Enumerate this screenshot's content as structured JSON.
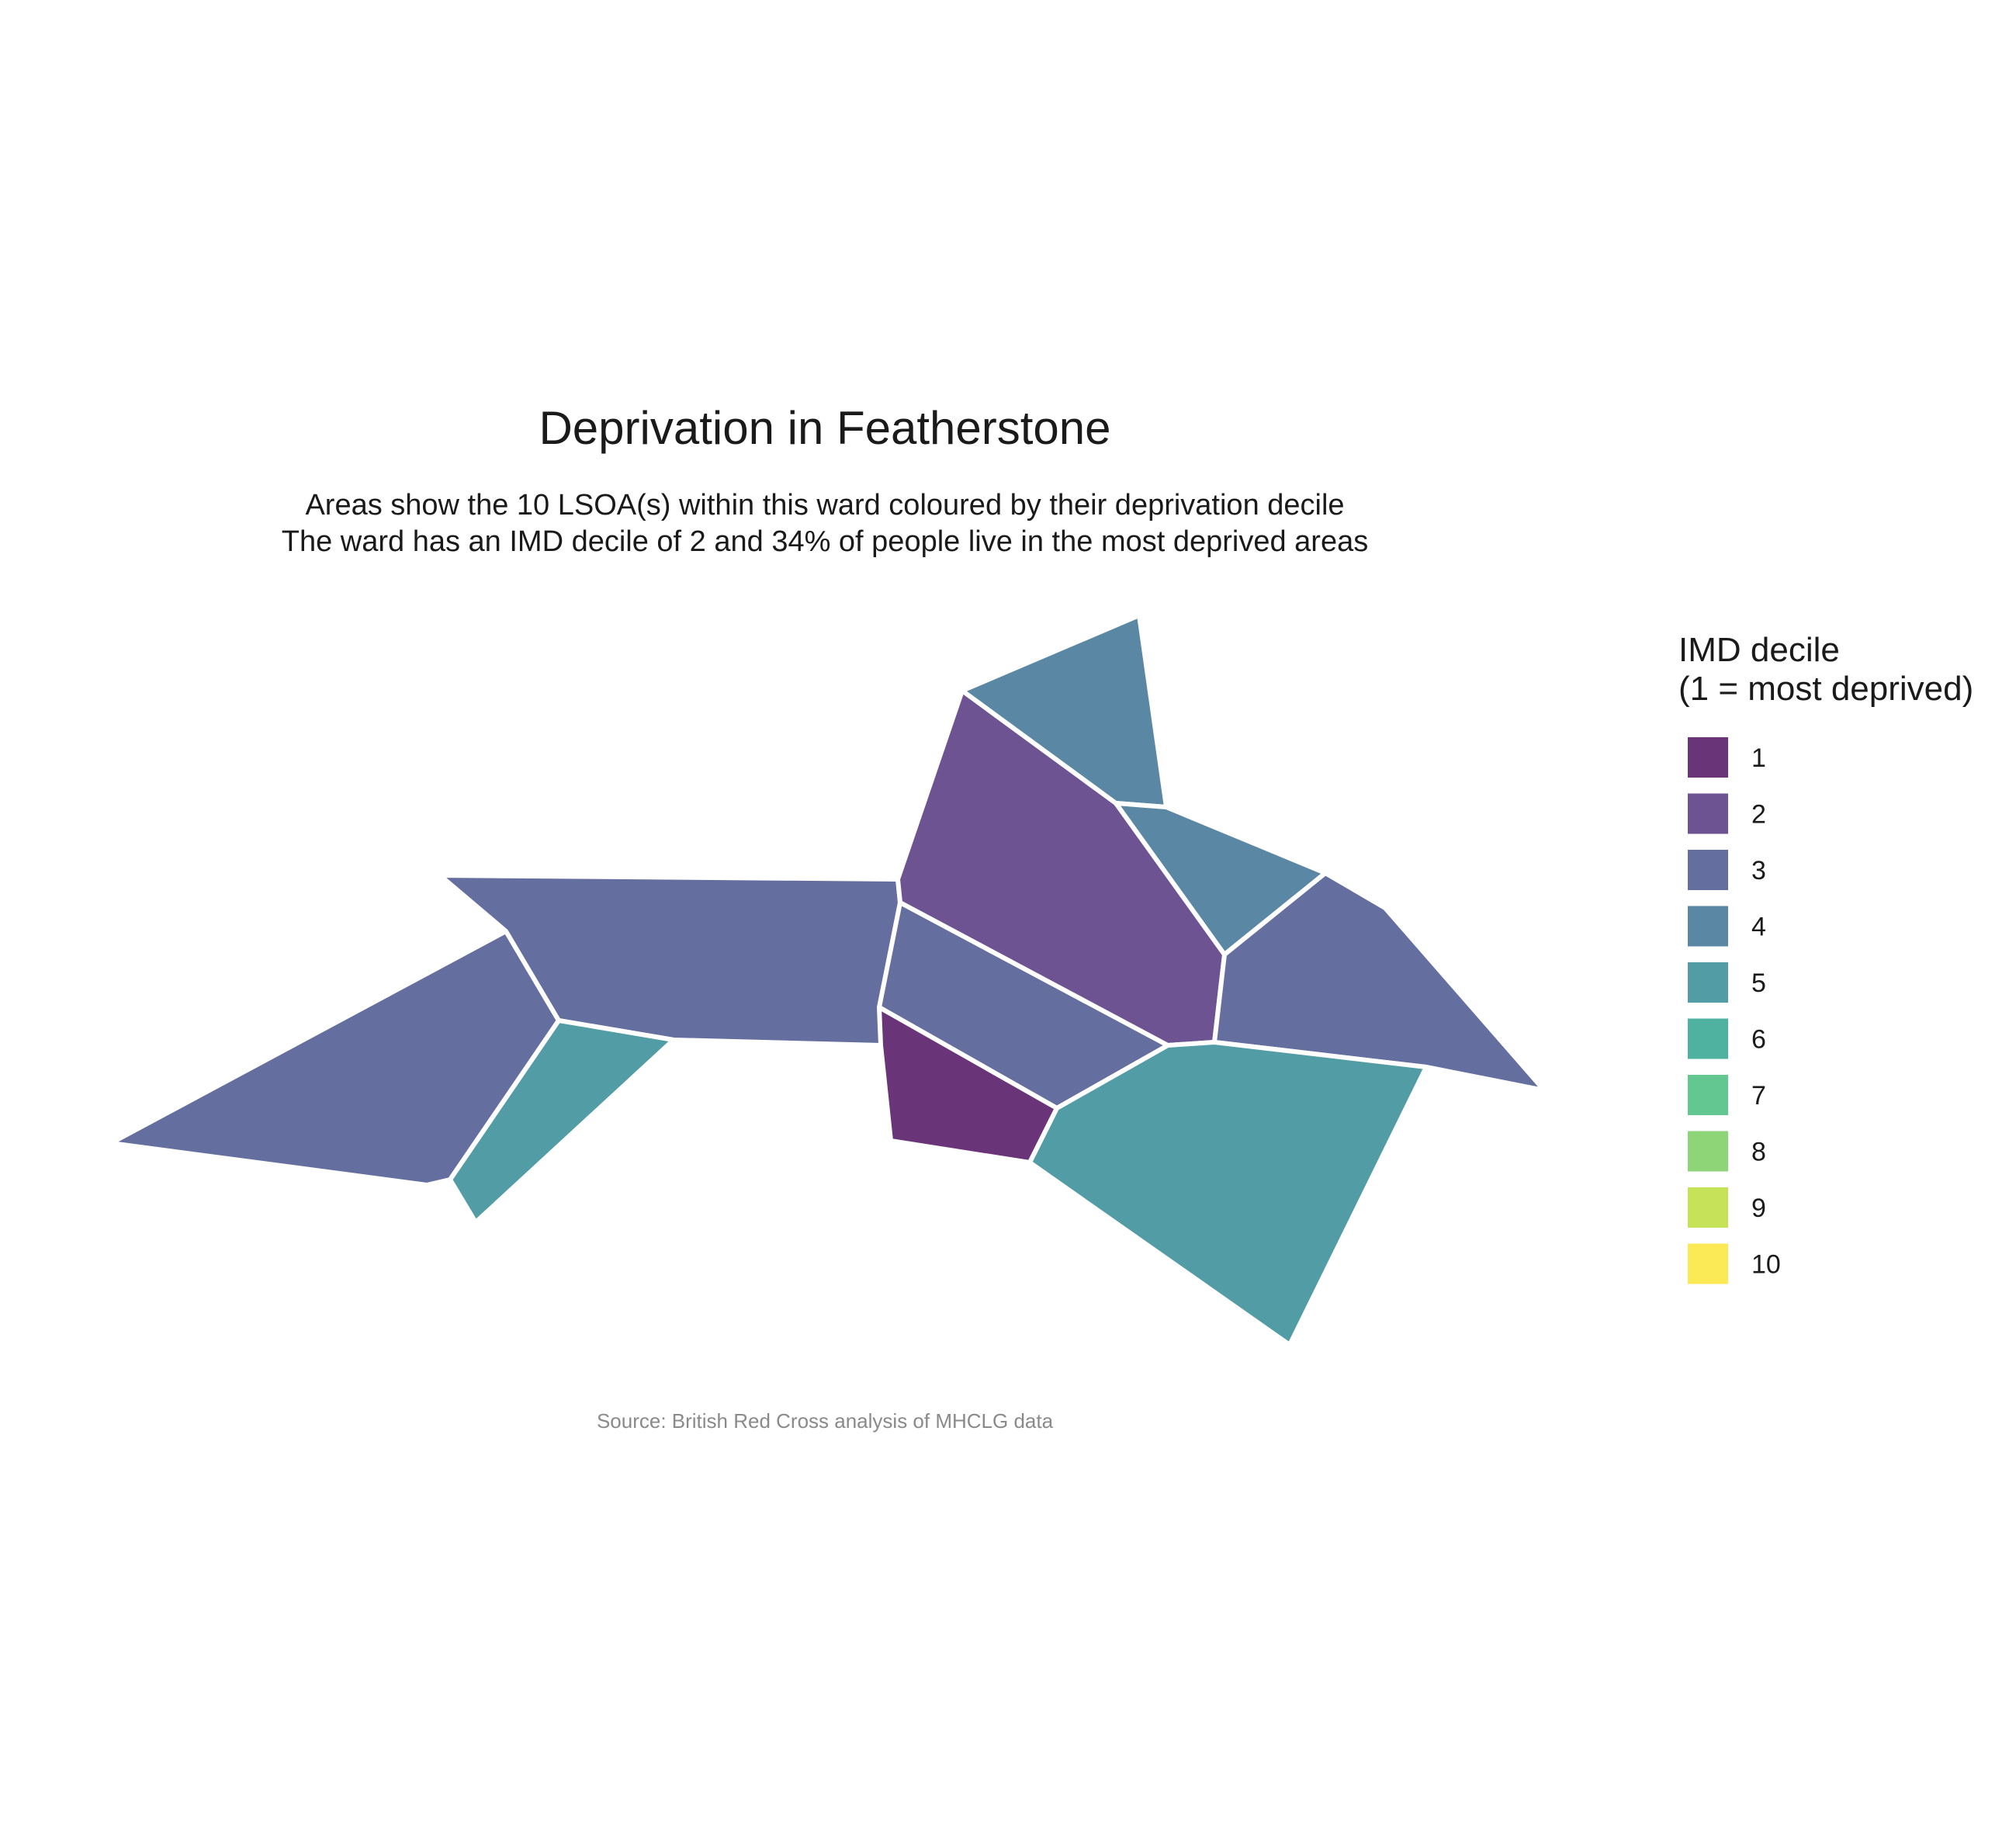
{
  "title": "Deprivation in Featherstone",
  "subtitle_lines": [
    "Areas show the 10 LSOA(s) within this ward coloured by their deprivation decile",
    "The ward has an IMD decile of 2 and 34% of people live in the most deprived areas"
  ],
  "caption": "Source: British Red Cross analysis of MHCLG data",
  "legend": {
    "title_lines": [
      "IMD decile",
      "(1 = most deprived)"
    ],
    "items": [
      {
        "label": "1",
        "color": "#6a3479"
      },
      {
        "label": "2",
        "color": "#6e5393"
      },
      {
        "label": "3",
        "color": "#646e9f"
      },
      {
        "label": "4",
        "color": "#5a87a3"
      },
      {
        "label": "5",
        "color": "#519ca5"
      },
      {
        "label": "6",
        "color": "#4fb2a0"
      },
      {
        "label": "7",
        "color": "#63c792"
      },
      {
        "label": "8",
        "color": "#8dd577"
      },
      {
        "label": "9",
        "color": "#c5e259"
      },
      {
        "label": "10",
        "color": "#fbe955"
      }
    ]
  },
  "chart_data": {
    "type": "choropleth",
    "value_name": "IMD decile",
    "areas": [
      {
        "id": "lsoa-west",
        "decile": 3
      },
      {
        "id": "lsoa-centre-west",
        "decile": 3
      },
      {
        "id": "lsoa-southwest-small",
        "decile": 5
      },
      {
        "id": "lsoa-centre-strip",
        "decile": 3
      },
      {
        "id": "lsoa-centre-south",
        "decile": 1
      },
      {
        "id": "lsoa-north-large",
        "decile": 2
      },
      {
        "id": "lsoa-north-tip",
        "decile": 4
      },
      {
        "id": "lsoa-northeast-small",
        "decile": 4
      },
      {
        "id": "lsoa-east",
        "decile": 3
      },
      {
        "id": "lsoa-southeast-large",
        "decile": 5
      }
    ]
  }
}
